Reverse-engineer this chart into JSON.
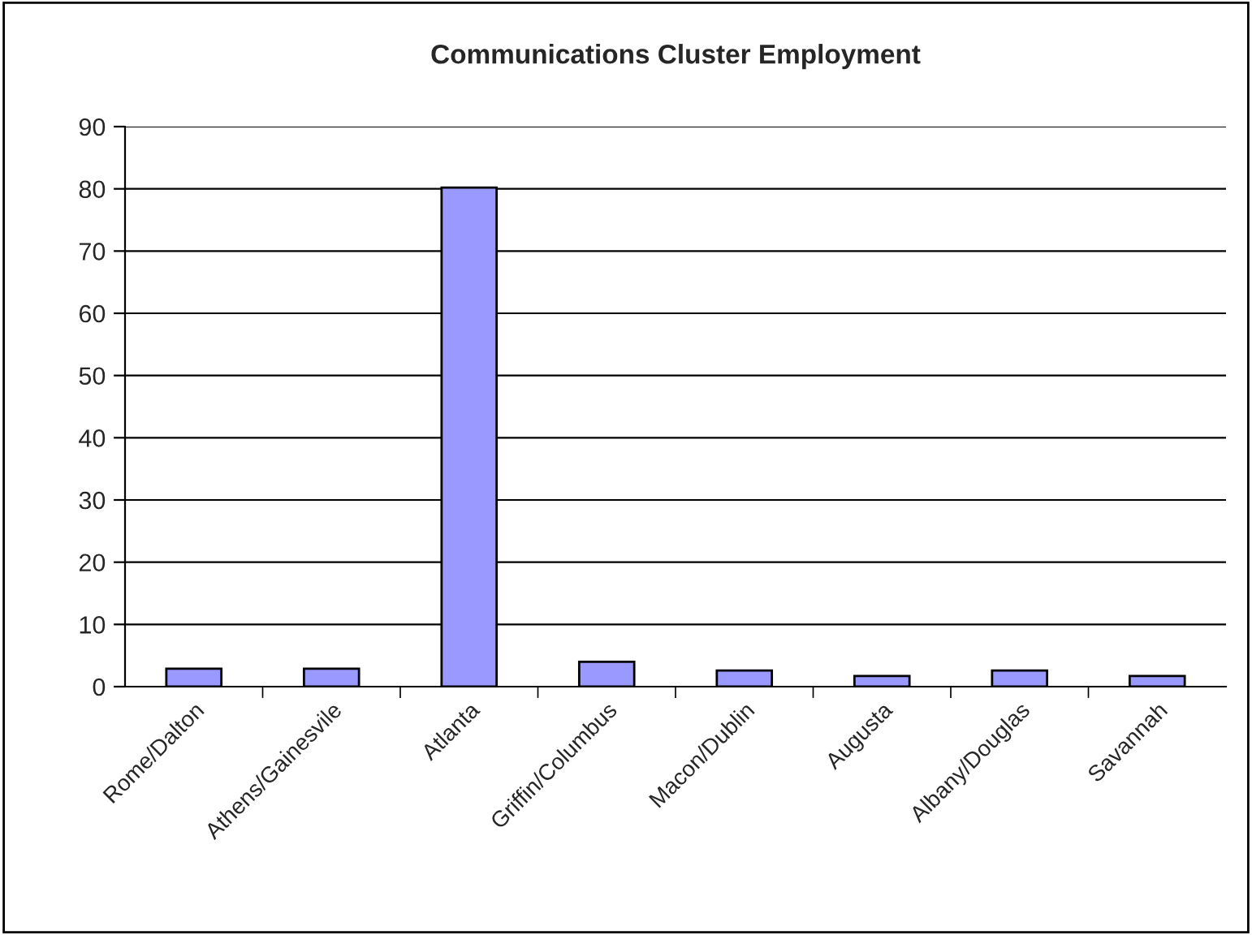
{
  "chart_data": {
    "type": "bar",
    "title": "Communications Cluster Employment",
    "categories": [
      "Rome/Dalton",
      "Athens/Gainesvile",
      "Atlanta",
      "Griffin/Columbus",
      "Macon/Dublin",
      "Augusta",
      "Albany/Douglas",
      "Savannah"
    ],
    "values": [
      2.9,
      2.9,
      80.2,
      4.0,
      2.6,
      1.7,
      2.6,
      1.7
    ],
    "color": "#9999ff",
    "ylim": [
      0,
      90
    ],
    "yticks": [
      0,
      10,
      20,
      30,
      40,
      50,
      60,
      70,
      80,
      90
    ],
    "grid": "y"
  }
}
